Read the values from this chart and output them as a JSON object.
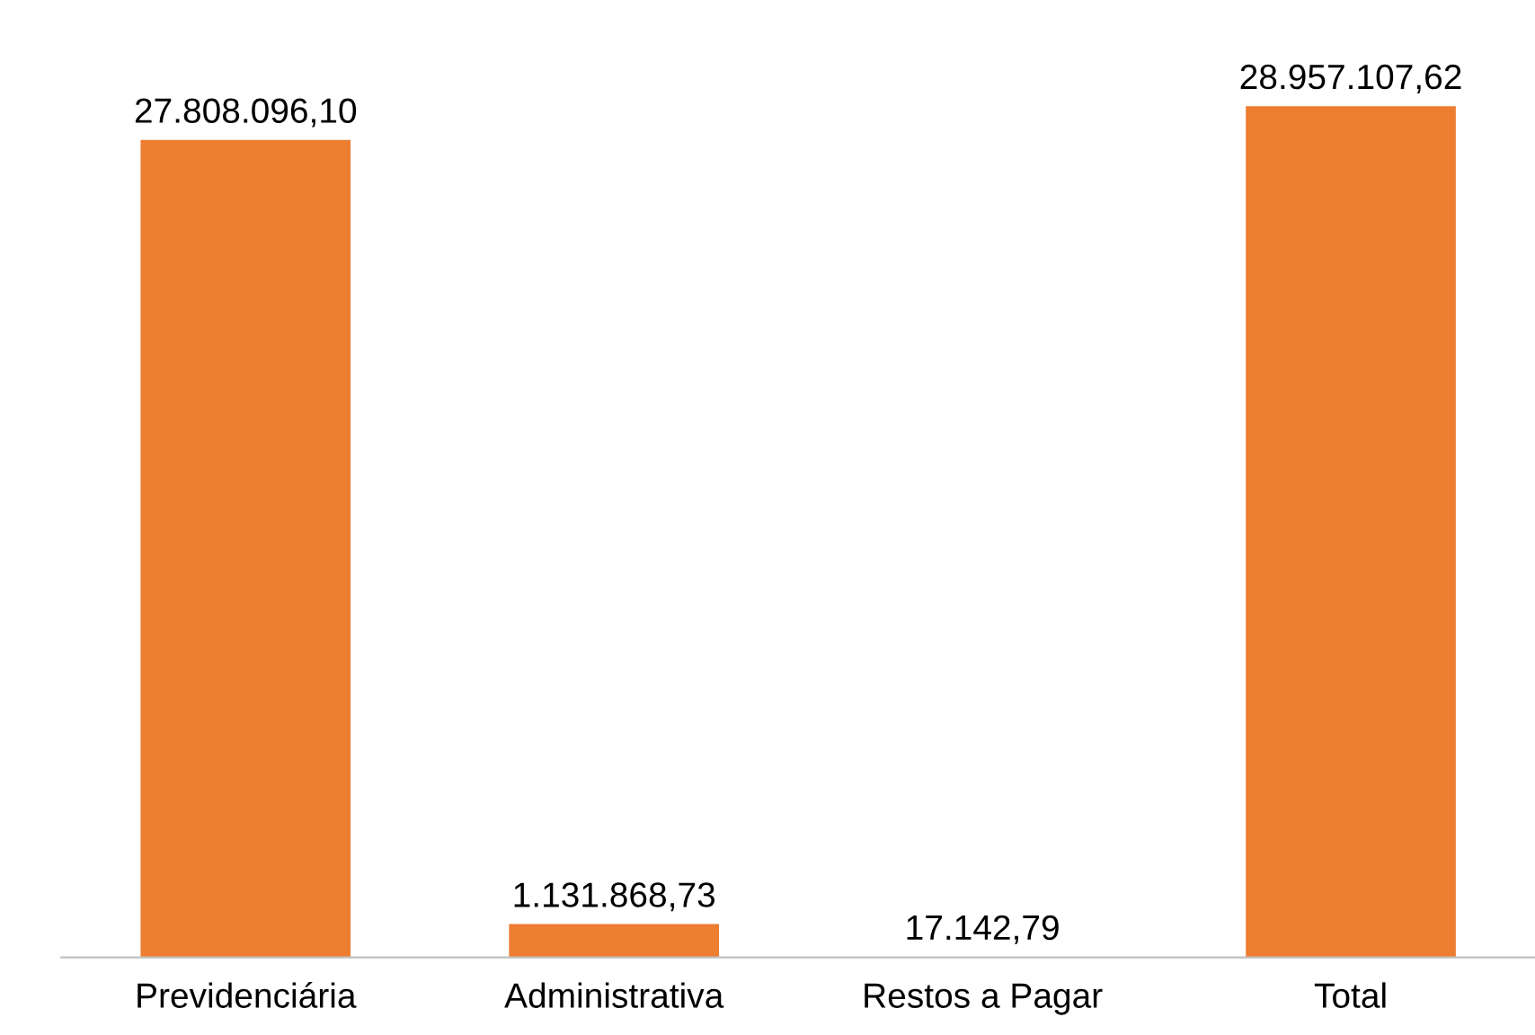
{
  "chart_data": {
    "type": "bar",
    "categories": [
      "Previdenciária",
      "Administrativa",
      "Restos a Pagar",
      "Total"
    ],
    "values": [
      27808096.1,
      1131868.73,
      17142.79,
      28957107.62
    ],
    "value_labels": [
      "27.808.096,10",
      "1.131.868,73",
      "17.142,79",
      "28.957.107,62"
    ],
    "color": "#ed7d31",
    "grid": false,
    "legend": false,
    "tick_labels": "x"
  }
}
